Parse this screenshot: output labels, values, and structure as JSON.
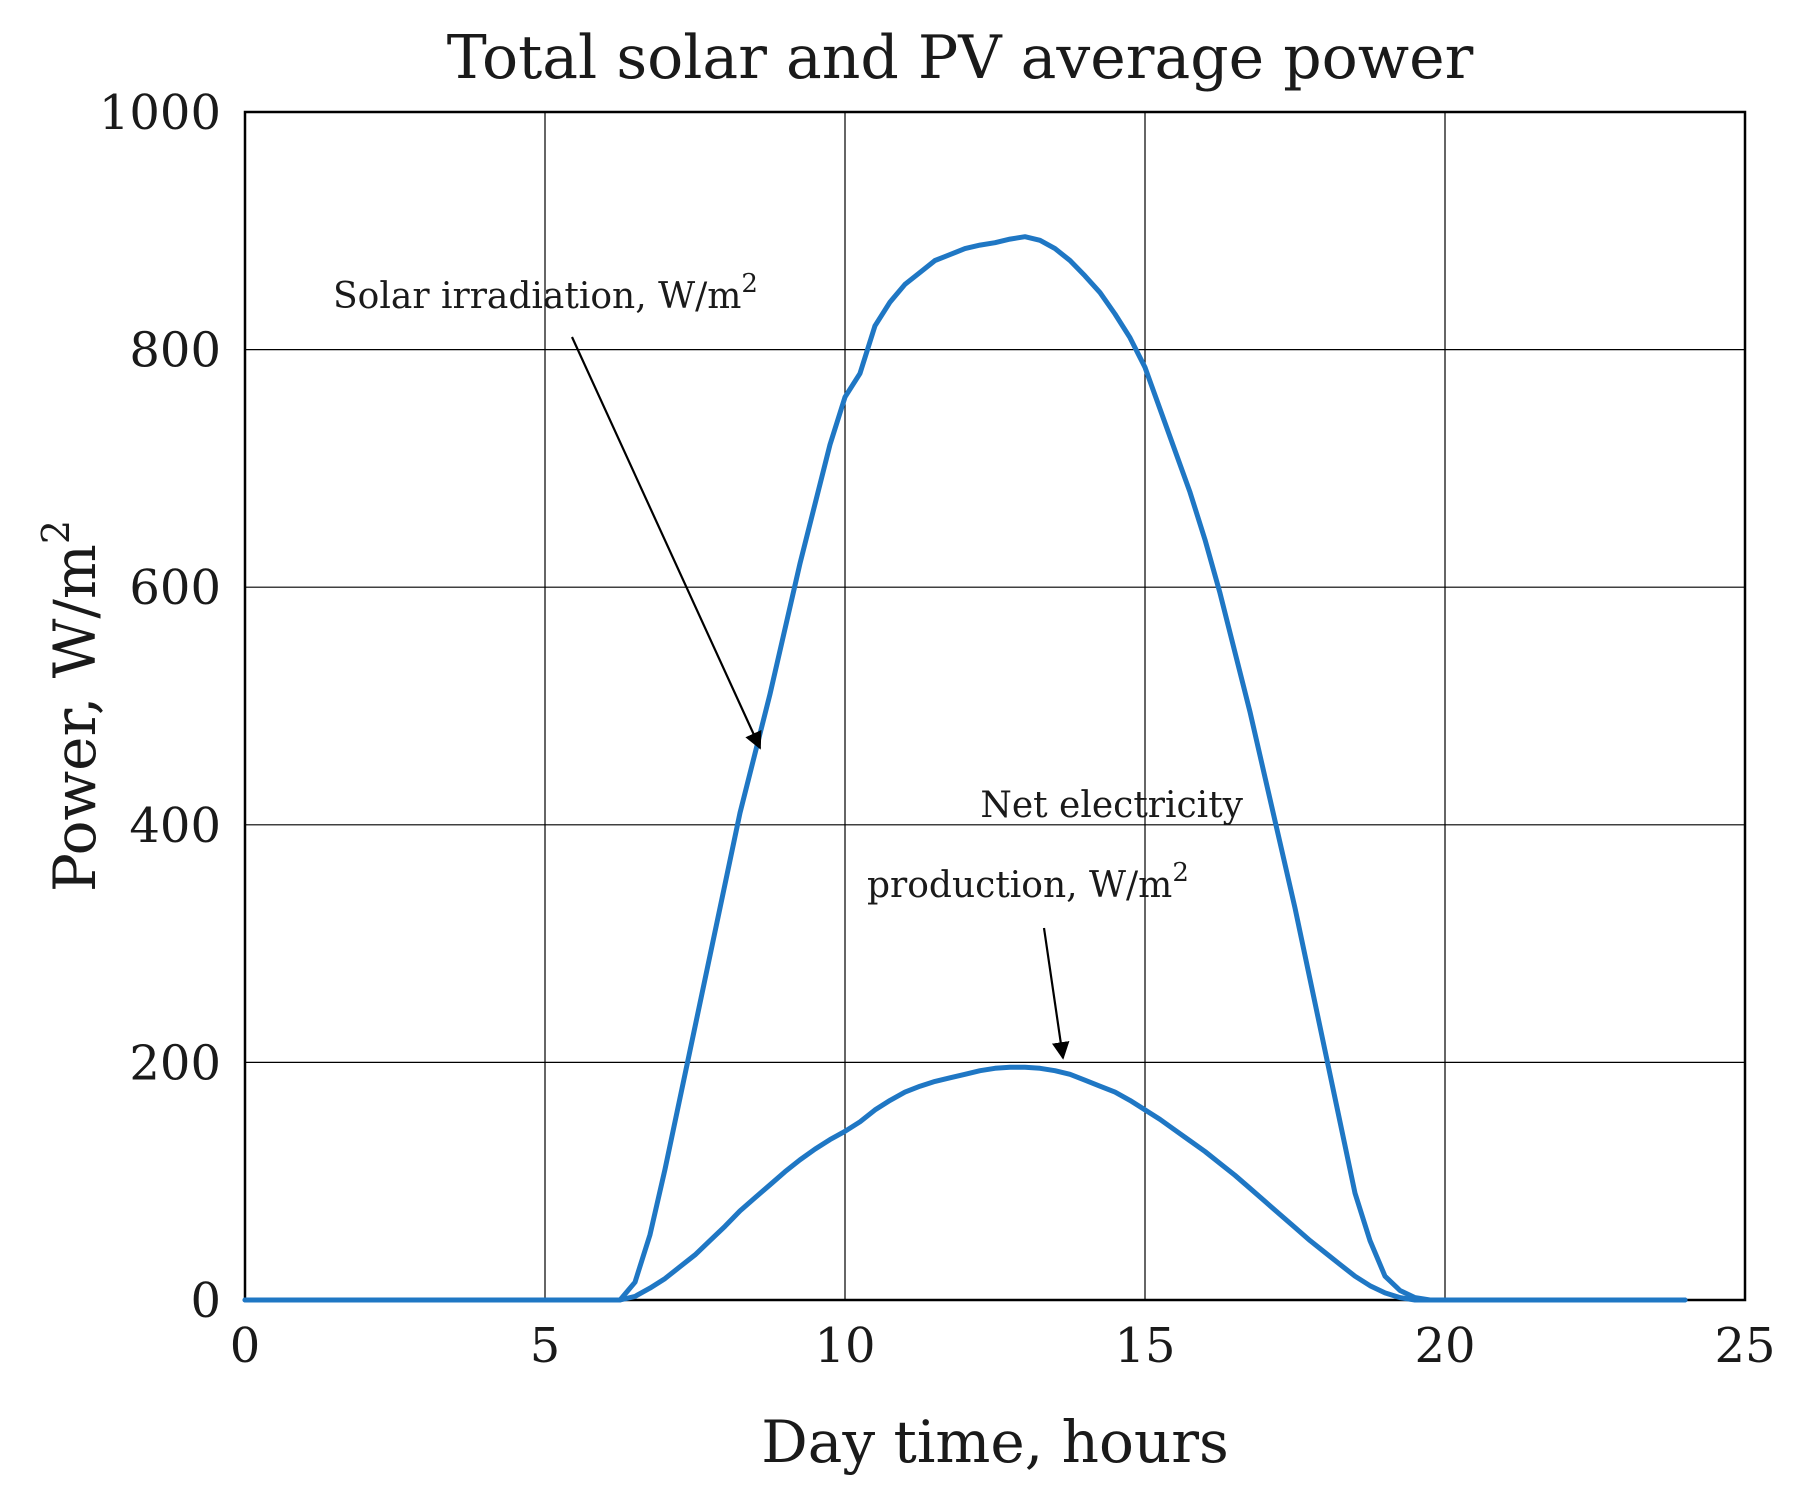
{
  "chart_data": {
    "type": "line",
    "title": "Total solar and PV average power",
    "xlabel": "Day time, hours",
    "ylabel": "Power, W/m",
    "ylabel_superscript": "2",
    "xlim": [
      0,
      25
    ],
    "ylim": [
      0,
      1000
    ],
    "xticks": [
      0,
      5,
      10,
      15,
      20,
      25
    ],
    "yticks": [
      0,
      200,
      400,
      600,
      800,
      1000
    ],
    "grid": true,
    "series_color": "#1f77c4",
    "series": [
      {
        "name": "Solar irradiation",
        "x": [
          0,
          6.25,
          6.5,
          6.75,
          7.0,
          7.25,
          7.5,
          7.75,
          8.0,
          8.25,
          8.5,
          8.75,
          9.0,
          9.25,
          9.5,
          9.75,
          10.0,
          10.25,
          10.5,
          10.75,
          11.0,
          11.25,
          11.5,
          11.75,
          12.0,
          12.25,
          12.5,
          12.75,
          13.0,
          13.25,
          13.5,
          13.75,
          14.0,
          14.25,
          14.5,
          14.75,
          15.0,
          15.25,
          15.5,
          15.75,
          16.0,
          16.25,
          16.5,
          16.75,
          17.0,
          17.25,
          17.5,
          17.75,
          18.0,
          18.25,
          18.5,
          18.75,
          19.0,
          19.25,
          19.5,
          19.75,
          20.0,
          24.0
        ],
        "y": [
          0,
          0,
          15,
          55,
          110,
          170,
          230,
          290,
          350,
          410,
          460,
          510,
          565,
          620,
          670,
          720,
          760,
          780,
          820,
          840,
          855,
          865,
          875,
          880,
          885,
          888,
          890,
          893,
          895,
          892,
          885,
          875,
          862,
          848,
          830,
          810,
          785,
          750,
          715,
          680,
          640,
          595,
          545,
          495,
          440,
          385,
          330,
          270,
          210,
          150,
          90,
          50,
          20,
          8,
          2,
          0,
          0,
          0
        ]
      },
      {
        "name": "Net electricity production",
        "x": [
          0,
          6.25,
          6.5,
          6.75,
          7.0,
          7.25,
          7.5,
          7.75,
          8.0,
          8.25,
          8.5,
          8.75,
          9.0,
          9.25,
          9.5,
          9.75,
          10.0,
          10.25,
          10.5,
          10.75,
          11.0,
          11.25,
          11.5,
          11.75,
          12.0,
          12.25,
          12.5,
          12.75,
          13.0,
          13.25,
          13.5,
          13.75,
          14.0,
          14.25,
          14.5,
          14.75,
          15.0,
          15.25,
          15.5,
          15.75,
          16.0,
          16.25,
          16.5,
          16.75,
          17.0,
          17.25,
          17.5,
          17.75,
          18.0,
          18.25,
          18.5,
          18.75,
          19.0,
          19.25,
          19.5,
          19.75,
          20.0,
          24.0
        ],
        "y": [
          0,
          0,
          3,
          10,
          18,
          28,
          38,
          50,
          62,
          75,
          86,
          97,
          108,
          118,
          127,
          135,
          142,
          150,
          160,
          168,
          175,
          180,
          184,
          187,
          190,
          193,
          195,
          196,
          196,
          195,
          193,
          190,
          185,
          180,
          175,
          168,
          160,
          152,
          143,
          134,
          125,
          115,
          105,
          94,
          83,
          72,
          61,
          50,
          40,
          30,
          20,
          12,
          6,
          2,
          0,
          0,
          0,
          0
        ]
      }
    ],
    "annotations": [
      {
        "text": "Solar irradiation, W/m",
        "superscript": "2",
        "target_series": "Solar irradiation"
      },
      {
        "line1": "Net electricity",
        "line2": "production, W/m",
        "superscript": "2",
        "target_series": "Net electricity production"
      }
    ]
  }
}
